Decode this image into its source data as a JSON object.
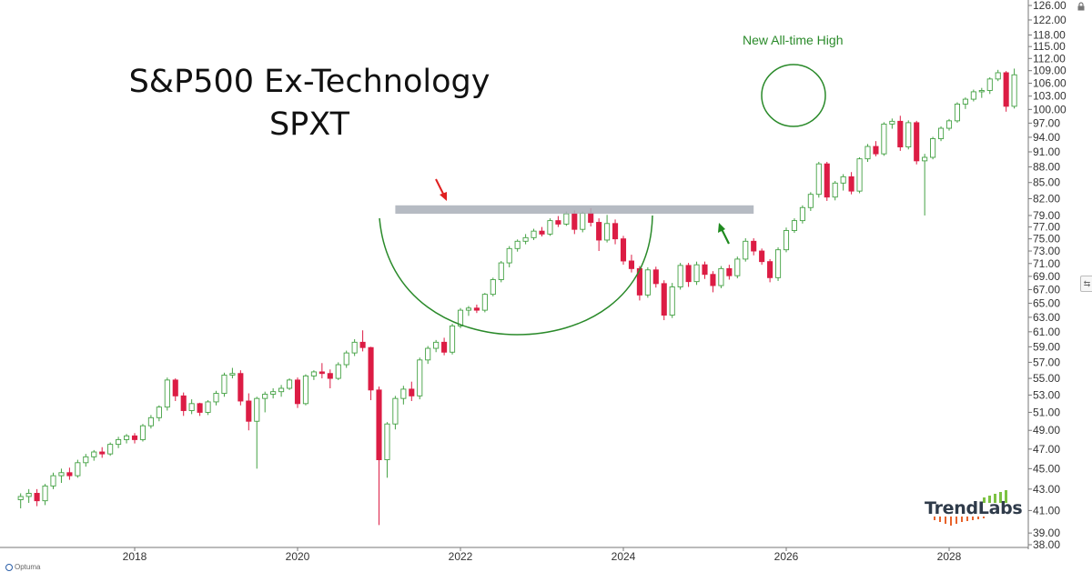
{
  "title_line1": "S&P500 Ex-Technology",
  "title_line2": "SPXT",
  "annotation": "New All-time High",
  "logo_text": "TrendLabs",
  "footer": "Optuma",
  "colors": {
    "up": "#43a143",
    "down": "#dc1c44",
    "zone": "#a9afb9",
    "arc": "#2a8a2a",
    "red_arrow": "#e02020",
    "green_arrow": "#1f8a1f"
  },
  "icons": [
    "lock-icon",
    "pin-icon",
    "logo-bars-icon"
  ],
  "chart_data": {
    "type": "candlestick",
    "title": "S&P500 Ex-Technology",
    "subtitle": "SPXT",
    "x_ticks": [
      "2018",
      "2020",
      "2022",
      "2024",
      "2026",
      "2028"
    ],
    "y_ticks": [
      "38.00",
      "39.00",
      "41.00",
      "43.00",
      "45.00",
      "47.00",
      "49.00",
      "51.00",
      "53.00",
      "55.00",
      "57.00",
      "59.00",
      "61.00",
      "63.00",
      "65.00",
      "67.00",
      "69.00",
      "71.00",
      "73.00",
      "75.00",
      "77.00",
      "79.00",
      "82.00",
      "85.00",
      "88.00",
      "91.00",
      "94.00",
      "97.00",
      "100.00",
      "103.00",
      "106.00",
      "109.00",
      "112.00",
      "115.00",
      "118.00",
      "122.00",
      "126.00"
    ],
    "y_scale": "log",
    "ylim": [
      38,
      126
    ],
    "resistance_zone": {
      "low": 79.3,
      "high": 80.8,
      "from": "2021.2",
      "to": "2025.6"
    },
    "candles": [
      {
        "t": 2016.6,
        "o": 42.0,
        "h": 42.6,
        "l": 41.2,
        "c": 42.3
      },
      {
        "t": 2016.7,
        "o": 42.3,
        "h": 43.0,
        "l": 41.7,
        "c": 42.6
      },
      {
        "t": 2016.8,
        "o": 42.6,
        "h": 43.0,
        "l": 41.4,
        "c": 41.9
      },
      {
        "t": 2016.9,
        "o": 41.9,
        "h": 43.5,
        "l": 41.5,
        "c": 43.3
      },
      {
        "t": 2017.0,
        "o": 43.3,
        "h": 44.6,
        "l": 43.0,
        "c": 44.3
      },
      {
        "t": 2017.1,
        "o": 44.3,
        "h": 45.0,
        "l": 43.6,
        "c": 44.6
      },
      {
        "t": 2017.2,
        "o": 44.6,
        "h": 45.1,
        "l": 43.9,
        "c": 44.3
      },
      {
        "t": 2017.3,
        "o": 44.3,
        "h": 45.9,
        "l": 44.1,
        "c": 45.6
      },
      {
        "t": 2017.4,
        "o": 45.6,
        "h": 46.5,
        "l": 45.2,
        "c": 46.2
      },
      {
        "t": 2017.5,
        "o": 46.2,
        "h": 46.9,
        "l": 45.8,
        "c": 46.7
      },
      {
        "t": 2017.6,
        "o": 46.7,
        "h": 47.2,
        "l": 46.1,
        "c": 46.5
      },
      {
        "t": 2017.7,
        "o": 46.5,
        "h": 47.7,
        "l": 46.3,
        "c": 47.5
      },
      {
        "t": 2017.8,
        "o": 47.5,
        "h": 48.3,
        "l": 47.1,
        "c": 48.0
      },
      {
        "t": 2017.9,
        "o": 48.0,
        "h": 48.6,
        "l": 47.6,
        "c": 48.4
      },
      {
        "t": 2018.0,
        "o": 48.4,
        "h": 48.7,
        "l": 47.6,
        "c": 48.0
      },
      {
        "t": 2018.1,
        "o": 48.0,
        "h": 49.7,
        "l": 47.8,
        "c": 49.5
      },
      {
        "t": 2018.2,
        "o": 49.5,
        "h": 50.7,
        "l": 49.2,
        "c": 50.4
      },
      {
        "t": 2018.3,
        "o": 50.4,
        "h": 51.8,
        "l": 50.0,
        "c": 51.6
      },
      {
        "t": 2018.4,
        "o": 51.6,
        "h": 55.1,
        "l": 51.2,
        "c": 54.8
      },
      {
        "t": 2018.5,
        "o": 54.8,
        "h": 55.0,
        "l": 52.3,
        "c": 52.9
      },
      {
        "t": 2018.6,
        "o": 52.9,
        "h": 53.3,
        "l": 50.6,
        "c": 51.2
      },
      {
        "t": 2018.7,
        "o": 51.2,
        "h": 52.5,
        "l": 50.8,
        "c": 52.0
      },
      {
        "t": 2018.8,
        "o": 52.0,
        "h": 52.1,
        "l": 50.6,
        "c": 51.0
      },
      {
        "t": 2018.9,
        "o": 51.0,
        "h": 52.4,
        "l": 50.7,
        "c": 52.2
      },
      {
        "t": 2019.0,
        "o": 52.2,
        "h": 53.5,
        "l": 51.8,
        "c": 53.2
      },
      {
        "t": 2019.1,
        "o": 53.2,
        "h": 55.7,
        "l": 52.8,
        "c": 55.4
      },
      {
        "t": 2019.2,
        "o": 55.4,
        "h": 56.3,
        "l": 55.0,
        "c": 55.6
      },
      {
        "t": 2019.3,
        "o": 55.6,
        "h": 56.0,
        "l": 51.8,
        "c": 52.3
      },
      {
        "t": 2019.4,
        "o": 52.3,
        "h": 53.2,
        "l": 49.0,
        "c": 50.0
      },
      {
        "t": 2019.5,
        "o": 50.0,
        "h": 52.8,
        "l": 45.0,
        "c": 52.6
      },
      {
        "t": 2019.6,
        "o": 52.6,
        "h": 53.4,
        "l": 51.0,
        "c": 53.1
      },
      {
        "t": 2019.7,
        "o": 53.1,
        "h": 53.8,
        "l": 52.6,
        "c": 53.4
      },
      {
        "t": 2019.8,
        "o": 53.4,
        "h": 54.2,
        "l": 52.8,
        "c": 53.8
      },
      {
        "t": 2019.9,
        "o": 53.8,
        "h": 55.0,
        "l": 53.6,
        "c": 54.8
      },
      {
        "t": 2020.0,
        "o": 54.8,
        "h": 55.1,
        "l": 51.5,
        "c": 52.0
      },
      {
        "t": 2020.1,
        "o": 52.0,
        "h": 55.5,
        "l": 51.8,
        "c": 55.3
      },
      {
        "t": 2020.2,
        "o": 55.3,
        "h": 56.0,
        "l": 54.8,
        "c": 55.8
      },
      {
        "t": 2020.3,
        "o": 55.8,
        "h": 56.9,
        "l": 55.0,
        "c": 55.6
      },
      {
        "t": 2020.4,
        "o": 55.6,
        "h": 56.1,
        "l": 53.8,
        "c": 55.0
      },
      {
        "t": 2020.5,
        "o": 55.0,
        "h": 57.0,
        "l": 54.8,
        "c": 56.7
      },
      {
        "t": 2020.6,
        "o": 56.7,
        "h": 58.5,
        "l": 56.3,
        "c": 58.2
      },
      {
        "t": 2020.7,
        "o": 58.2,
        "h": 60.0,
        "l": 57.8,
        "c": 59.6
      },
      {
        "t": 2020.8,
        "o": 59.6,
        "h": 61.2,
        "l": 58.4,
        "c": 58.9
      },
      {
        "t": 2020.9,
        "o": 58.9,
        "h": 59.0,
        "l": 52.4,
        "c": 53.6
      },
      {
        "t": 2021.0,
        "o": 53.6,
        "h": 54.0,
        "l": 39.7,
        "c": 45.9
      },
      {
        "t": 2021.1,
        "o": 45.9,
        "h": 49.9,
        "l": 44.1,
        "c": 49.7
      },
      {
        "t": 2021.2,
        "o": 49.7,
        "h": 52.9,
        "l": 49.1,
        "c": 52.6
      },
      {
        "t": 2021.3,
        "o": 52.6,
        "h": 54.1,
        "l": 51.9,
        "c": 53.7
      },
      {
        "t": 2021.4,
        "o": 53.7,
        "h": 54.6,
        "l": 52.3,
        "c": 52.9
      },
      {
        "t": 2021.5,
        "o": 52.9,
        "h": 57.6,
        "l": 52.5,
        "c": 57.3
      },
      {
        "t": 2021.6,
        "o": 57.3,
        "h": 59.1,
        "l": 56.8,
        "c": 58.8
      },
      {
        "t": 2021.7,
        "o": 58.8,
        "h": 59.9,
        "l": 58.3,
        "c": 59.6
      },
      {
        "t": 2021.8,
        "o": 59.6,
        "h": 60.2,
        "l": 57.9,
        "c": 58.3
      },
      {
        "t": 2021.9,
        "o": 58.3,
        "h": 62.1,
        "l": 58.0,
        "c": 61.8
      },
      {
        "t": 2022.0,
        "o": 61.8,
        "h": 64.3,
        "l": 61.5,
        "c": 64.0
      },
      {
        "t": 2022.1,
        "o": 64.0,
        "h": 64.6,
        "l": 63.2,
        "c": 64.3
      },
      {
        "t": 2022.2,
        "o": 64.3,
        "h": 64.8,
        "l": 63.6,
        "c": 64.0
      },
      {
        "t": 2022.3,
        "o": 64.0,
        "h": 66.5,
        "l": 63.7,
        "c": 66.3
      },
      {
        "t": 2022.4,
        "o": 66.3,
        "h": 68.8,
        "l": 66.0,
        "c": 68.5
      },
      {
        "t": 2022.5,
        "o": 68.5,
        "h": 71.4,
        "l": 68.1,
        "c": 71.1
      },
      {
        "t": 2022.6,
        "o": 71.1,
        "h": 73.8,
        "l": 70.4,
        "c": 73.4
      },
      {
        "t": 2022.7,
        "o": 73.4,
        "h": 74.9,
        "l": 72.9,
        "c": 74.6
      },
      {
        "t": 2022.8,
        "o": 74.6,
        "h": 75.8,
        "l": 74.1,
        "c": 75.2
      },
      {
        "t": 2022.9,
        "o": 75.2,
        "h": 76.7,
        "l": 74.8,
        "c": 76.3
      },
      {
        "t": 2023.0,
        "o": 76.3,
        "h": 77.0,
        "l": 75.4,
        "c": 75.8
      },
      {
        "t": 2023.1,
        "o": 75.8,
        "h": 78.5,
        "l": 75.5,
        "c": 78.1
      },
      {
        "t": 2023.2,
        "o": 78.1,
        "h": 78.9,
        "l": 77.0,
        "c": 77.5
      },
      {
        "t": 2023.3,
        "o": 77.5,
        "h": 79.7,
        "l": 77.2,
        "c": 79.3
      },
      {
        "t": 2023.4,
        "o": 79.3,
        "h": 79.9,
        "l": 75.8,
        "c": 76.6
      },
      {
        "t": 2023.5,
        "o": 76.6,
        "h": 79.7,
        "l": 76.1,
        "c": 79.4
      },
      {
        "t": 2023.6,
        "o": 79.4,
        "h": 80.3,
        "l": 77.1,
        "c": 77.8
      },
      {
        "t": 2023.7,
        "o": 77.8,
        "h": 78.5,
        "l": 73.0,
        "c": 74.8
      },
      {
        "t": 2023.8,
        "o": 74.8,
        "h": 79.1,
        "l": 74.4,
        "c": 77.6
      },
      {
        "t": 2023.9,
        "o": 77.6,
        "h": 78.3,
        "l": 74.1,
        "c": 75.0
      },
      {
        "t": 2024.0,
        "o": 75.0,
        "h": 75.5,
        "l": 70.8,
        "c": 71.4
      },
      {
        "t": 2024.1,
        "o": 71.4,
        "h": 72.4,
        "l": 69.6,
        "c": 70.2
      },
      {
        "t": 2024.2,
        "o": 70.2,
        "h": 70.6,
        "l": 65.4,
        "c": 66.2
      },
      {
        "t": 2024.3,
        "o": 66.2,
        "h": 70.4,
        "l": 65.8,
        "c": 70.0
      },
      {
        "t": 2024.4,
        "o": 70.0,
        "h": 70.5,
        "l": 67.3,
        "c": 67.9
      },
      {
        "t": 2024.5,
        "o": 67.9,
        "h": 68.4,
        "l": 62.6,
        "c": 63.3
      },
      {
        "t": 2024.6,
        "o": 63.3,
        "h": 68.0,
        "l": 62.9,
        "c": 67.4
      },
      {
        "t": 2024.7,
        "o": 67.4,
        "h": 71.1,
        "l": 67.0,
        "c": 70.7
      },
      {
        "t": 2024.8,
        "o": 70.7,
        "h": 71.1,
        "l": 67.4,
        "c": 68.2
      },
      {
        "t": 2024.9,
        "o": 68.2,
        "h": 71.3,
        "l": 67.7,
        "c": 70.8
      },
      {
        "t": 2025.0,
        "o": 70.8,
        "h": 71.3,
        "l": 68.6,
        "c": 69.3
      },
      {
        "t": 2025.1,
        "o": 69.3,
        "h": 69.8,
        "l": 66.6,
        "c": 67.6
      },
      {
        "t": 2025.2,
        "o": 67.6,
        "h": 70.6,
        "l": 67.2,
        "c": 70.2
      },
      {
        "t": 2025.3,
        "o": 70.2,
        "h": 70.8,
        "l": 68.5,
        "c": 69.1
      },
      {
        "t": 2025.4,
        "o": 69.1,
        "h": 72.1,
        "l": 68.7,
        "c": 71.7
      },
      {
        "t": 2025.5,
        "o": 71.7,
        "h": 75.1,
        "l": 71.3,
        "c": 74.6
      },
      {
        "t": 2025.6,
        "o": 74.6,
        "h": 75.1,
        "l": 72.3,
        "c": 73.0
      },
      {
        "t": 2025.7,
        "o": 73.0,
        "h": 73.4,
        "l": 70.8,
        "c": 71.3
      },
      {
        "t": 2025.8,
        "o": 71.3,
        "h": 71.7,
        "l": 68.1,
        "c": 68.8
      },
      {
        "t": 2025.9,
        "o": 68.8,
        "h": 73.6,
        "l": 68.3,
        "c": 73.2
      },
      {
        "t": 2026.0,
        "o": 73.2,
        "h": 76.9,
        "l": 72.8,
        "c": 76.4
      },
      {
        "t": 2026.1,
        "o": 76.4,
        "h": 78.5,
        "l": 76.0,
        "c": 78.1
      },
      {
        "t": 2026.2,
        "o": 78.1,
        "h": 80.8,
        "l": 77.6,
        "c": 80.4
      },
      {
        "t": 2026.3,
        "o": 80.4,
        "h": 83.2,
        "l": 79.8,
        "c": 82.8
      },
      {
        "t": 2026.4,
        "o": 82.8,
        "h": 89.0,
        "l": 82.2,
        "c": 88.6
      },
      {
        "t": 2026.5,
        "o": 88.6,
        "h": 89.0,
        "l": 81.6,
        "c": 82.3
      },
      {
        "t": 2026.6,
        "o": 82.3,
        "h": 85.3,
        "l": 81.7,
        "c": 84.9
      },
      {
        "t": 2026.7,
        "o": 84.9,
        "h": 86.6,
        "l": 83.5,
        "c": 86.1
      },
      {
        "t": 2026.8,
        "o": 86.1,
        "h": 87.0,
        "l": 82.8,
        "c": 83.4
      },
      {
        "t": 2026.9,
        "o": 83.4,
        "h": 89.9,
        "l": 83.0,
        "c": 89.6
      },
      {
        "t": 2027.0,
        "o": 89.6,
        "h": 92.6,
        "l": 89.0,
        "c": 92.1
      },
      {
        "t": 2027.1,
        "o": 92.1,
        "h": 93.2,
        "l": 90.1,
        "c": 90.6
      },
      {
        "t": 2027.2,
        "o": 90.6,
        "h": 97.2,
        "l": 90.2,
        "c": 96.8
      },
      {
        "t": 2027.3,
        "o": 96.8,
        "h": 98.0,
        "l": 95.8,
        "c": 97.4
      },
      {
        "t": 2027.4,
        "o": 97.4,
        "h": 98.6,
        "l": 91.2,
        "c": 92.0
      },
      {
        "t": 2027.5,
        "o": 92.0,
        "h": 97.6,
        "l": 91.5,
        "c": 97.1
      },
      {
        "t": 2027.6,
        "o": 97.1,
        "h": 97.5,
        "l": 88.5,
        "c": 89.2
      },
      {
        "t": 2027.7,
        "o": 89.2,
        "h": 90.6,
        "l": 79.0,
        "c": 89.9
      },
      {
        "t": 2027.8,
        "o": 89.9,
        "h": 94.1,
        "l": 89.5,
        "c": 93.7
      },
      {
        "t": 2027.9,
        "o": 93.7,
        "h": 96.3,
        "l": 93.2,
        "c": 95.9
      },
      {
        "t": 2028.0,
        "o": 95.9,
        "h": 97.9,
        "l": 95.4,
        "c": 97.5
      },
      {
        "t": 2028.1,
        "o": 97.5,
        "h": 101.6,
        "l": 97.1,
        "c": 101.2
      },
      {
        "t": 2028.2,
        "o": 101.2,
        "h": 102.7,
        "l": 100.1,
        "c": 102.3
      },
      {
        "t": 2028.3,
        "o": 102.3,
        "h": 104.5,
        "l": 101.8,
        "c": 104.0
      },
      {
        "t": 2028.4,
        "o": 104.0,
        "h": 104.9,
        "l": 102.6,
        "c": 104.3
      },
      {
        "t": 2028.5,
        "o": 104.3,
        "h": 107.4,
        "l": 103.5,
        "c": 107.0
      },
      {
        "t": 2028.6,
        "o": 107.0,
        "h": 109.2,
        "l": 106.5,
        "c": 108.5
      },
      {
        "t": 2028.7,
        "o": 108.5,
        "h": 108.9,
        "l": 99.5,
        "c": 100.7
      },
      {
        "t": 2028.8,
        "o": 100.7,
        "h": 109.5,
        "l": 100.2,
        "c": 108.0
      }
    ]
  }
}
